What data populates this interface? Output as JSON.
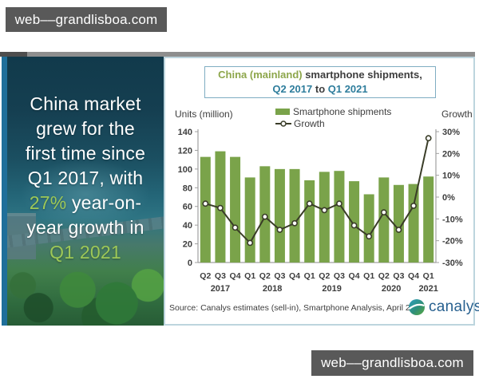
{
  "watermark": {
    "text": "web––grandlisboa.com"
  },
  "left_panel": {
    "headline_lines": [
      [
        {
          "text": "China market",
          "color": "white"
        }
      ],
      [
        {
          "text": "grew for the",
          "color": "white"
        }
      ],
      [
        {
          "text": "first time since",
          "color": "white"
        }
      ],
      [
        {
          "text": "Q1 2017, with",
          "color": "white"
        }
      ],
      [
        {
          "text": "27%",
          "color": "green"
        },
        {
          "text": " year-on-",
          "color": "white"
        }
      ],
      [
        {
          "text": "year growth in",
          "color": "white"
        }
      ],
      [
        {
          "text": "Q1 2021",
          "color": "green"
        }
      ]
    ]
  },
  "chart": {
    "title": {
      "highlight": "China (mainland)",
      "rest": " smartphone shipments,",
      "from": "Q2 2017",
      "to_word": " to ",
      "until": "Q1 2021"
    },
    "legend": [
      {
        "label": "Smartphone shipments"
      },
      {
        "label": "Growth"
      }
    ],
    "source": "Source: Canalys estimates (sell-in), Smartphone Analysis, April 2021",
    "logo_text": "canalys"
  },
  "chart_data": {
    "type": "bar",
    "title": "China (mainland) smartphone shipments, Q2 2017 to Q1 2021",
    "categories": [
      "Q2 2017",
      "Q3 2017",
      "Q4 2017",
      "Q1 2018",
      "Q2 2018",
      "Q3 2018",
      "Q4 2018",
      "Q1 2019",
      "Q2 2019",
      "Q3 2019",
      "Q4 2019",
      "Q1 2020",
      "Q2 2020",
      "Q3 2020",
      "Q4 2020",
      "Q1 2021"
    ],
    "series": [
      {
        "name": "Smartphone shipments",
        "type": "bar",
        "axis": "left",
        "values": [
          113,
          119,
          113,
          91,
          103,
          100,
          100,
          88,
          97,
          98,
          87,
          73,
          91,
          83,
          84,
          92
        ]
      },
      {
        "name": "Growth",
        "type": "line",
        "axis": "right",
        "unit": "%",
        "values": [
          -3,
          -5,
          -14,
          -21,
          -9,
          -15,
          -12,
          -3,
          -6,
          -3,
          -13,
          -18,
          -7,
          -15,
          -4,
          27
        ]
      }
    ],
    "left_axis": {
      "label": "Units (million)",
      "min": 0,
      "max": 140,
      "step": 20
    },
    "right_axis": {
      "label": "Growth",
      "min": -30,
      "max": 30,
      "step": 10,
      "format": "percent"
    },
    "x_year_labels": [
      {
        "label": "2017",
        "at_index": 1
      },
      {
        "label": "2018",
        "at_index": 4.5
      },
      {
        "label": "2019",
        "at_index": 8.5
      },
      {
        "label": "2020",
        "at_index": 12.5
      },
      {
        "label": "2021",
        "at_index": 15
      }
    ],
    "legend_position": "top",
    "grid": false
  },
  "colors": {
    "bar": "#7aa34a",
    "line": "#3a3d28",
    "axis": "#a0a0a0",
    "tick_text": "#3d3d3d",
    "title_green": "#8da64b",
    "title_teal": "#2e7d9c",
    "headline_green": "#9dc857",
    "watermark_bg": "#595959",
    "logo_blue": "#27608f",
    "panel_border": "#bdd5de",
    "strip_blue": "#1f6f9a"
  }
}
